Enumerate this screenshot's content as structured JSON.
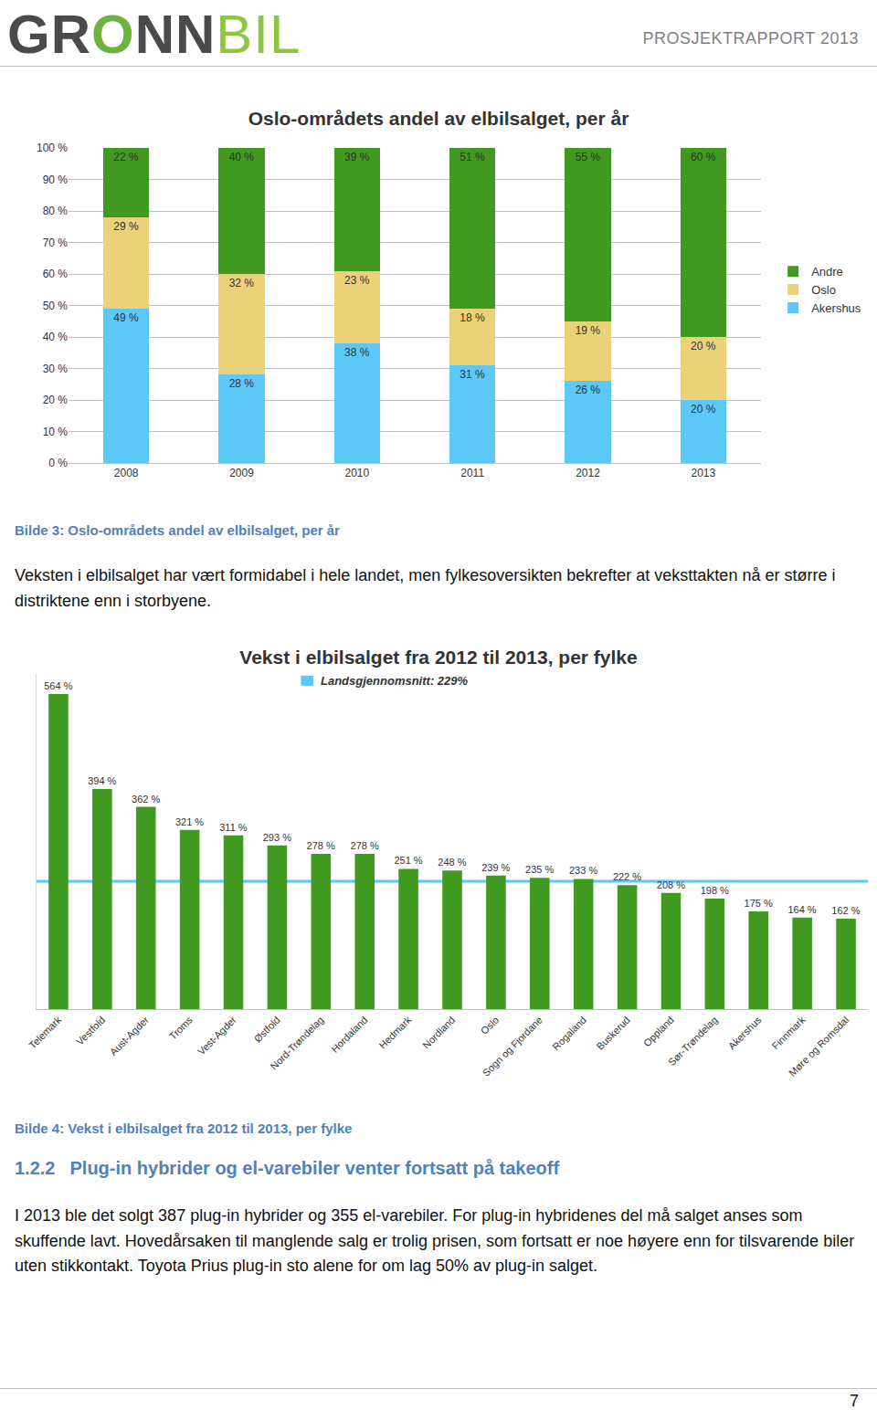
{
  "header": {
    "logo": [
      "GR",
      "O",
      "NN",
      "BIL"
    ],
    "report_label": "PROSJEKTRAPPORT 2013"
  },
  "chart_data": [
    {
      "type": "bar",
      "title": "Oslo-områdets andel av elbilsalget, per år",
      "categories": [
        "2008",
        "2009",
        "2010",
        "2011",
        "2012",
        "2013"
      ],
      "stacked": true,
      "data_labels": true,
      "grid": true,
      "legend": "right",
      "ylim": [
        0,
        100
      ],
      "yticks": [
        {
          "value": 0,
          "label": "0 %"
        },
        {
          "value": 10,
          "label": "10 %"
        },
        {
          "value": 20,
          "label": "20 %"
        },
        {
          "value": 30,
          "label": "30 %"
        },
        {
          "value": 40,
          "label": "40 %"
        },
        {
          "value": 50,
          "label": "50 %"
        },
        {
          "value": 60,
          "label": "60 %"
        },
        {
          "value": 70,
          "label": "70 %"
        },
        {
          "value": 80,
          "label": "80 %"
        },
        {
          "value": 90,
          "label": "90 %"
        },
        {
          "value": 100,
          "label": "100 %"
        }
      ],
      "series": [
        {
          "name": "Akershus",
          "color": "#5bc8f8",
          "values": [
            49,
            28,
            38,
            31,
            26,
            20
          ],
          "value_labels": [
            "49 %",
            "28 %",
            "38 %",
            "31 %",
            "26 %",
            "20 %"
          ]
        },
        {
          "name": "Oslo",
          "color": "#ebd177",
          "values": [
            29,
            32,
            23,
            18,
            19,
            20
          ],
          "value_labels": [
            "29 %",
            "32 %",
            "23 %",
            "18 %",
            "19 %",
            "20 %"
          ]
        },
        {
          "name": "Andre",
          "color": "#3f9a1f",
          "values": [
            22,
            40,
            39,
            51,
            55,
            60
          ],
          "value_labels": [
            "22 %",
            "40 %",
            "39 %",
            "51 %",
            "55 %",
            "60 %"
          ]
        }
      ]
    },
    {
      "type": "bar",
      "title": "Vekst i elbilsalget fra 2012 til 2013, per fylke",
      "categories": [
        "Telemark",
        "Vestfold",
        "Aust-Agder",
        "Troms",
        "Vest-Agder",
        "Østfold",
        "Nord-Trøndelag",
        "Hordaland",
        "Hedmark",
        "Nordland",
        "Oslo",
        "Sogn og Fjordane",
        "Rogaland",
        "Buskerud",
        "Oppland",
        "Sør-Trøndelag",
        "Akershus",
        "Finnmark",
        "Møre og Romsdal"
      ],
      "values": [
        564,
        394,
        362,
        321,
        311,
        293,
        278,
        278,
        251,
        248,
        239,
        235,
        233,
        222,
        208,
        198,
        175,
        164,
        162
      ],
      "value_labels": [
        "564 %",
        "394 %",
        "362 %",
        "321 %",
        "311 %",
        "293 %",
        "278 %",
        "278 %",
        "251 %",
        "248 %",
        "239 %",
        "235 %",
        "233 %",
        "222 %",
        "208 %",
        "198 %",
        "175 %",
        "164 %",
        "162 %"
      ],
      "color": "#3f9a1f",
      "data_labels": true,
      "grid": false,
      "tick_labels": "x",
      "ylim": [
        0,
        600
      ],
      "reference_line": {
        "value": 229,
        "label": "Landsgjennomsnitt: 229%",
        "color": "#5bc8f8"
      }
    }
  ],
  "captions": [
    "Bilde 3: Oslo-områdets andel av elbilsalget, per år",
    "Bilde 4: Vekst i elbilsalget fra 2012 til 2013, per fylke"
  ],
  "paragraph_1": "Veksten i elbilsalget har vært formidabel i hele landet, men fylkesoversikten bekrefter at veksttakten nå er større i distriktene enn i storbyene.",
  "heading": {
    "number": "1.2.2",
    "text": "Plug-in hybrider og el-varebiler venter fortsatt på takeoff"
  },
  "paragraph_2": "I 2013 ble det solgt 387 plug-in hybrider og 355 el-varebiler. For plug-in hybridenes del må salget anses som skuffende lavt. Hovedårsaken til manglende salg er trolig prisen, som fortsatt er noe høyere enn for tilsvarende biler uten stikkontakt. Toyota Prius plug-in sto alene for om lag 50% av plug-in salget.",
  "page_number": 7
}
